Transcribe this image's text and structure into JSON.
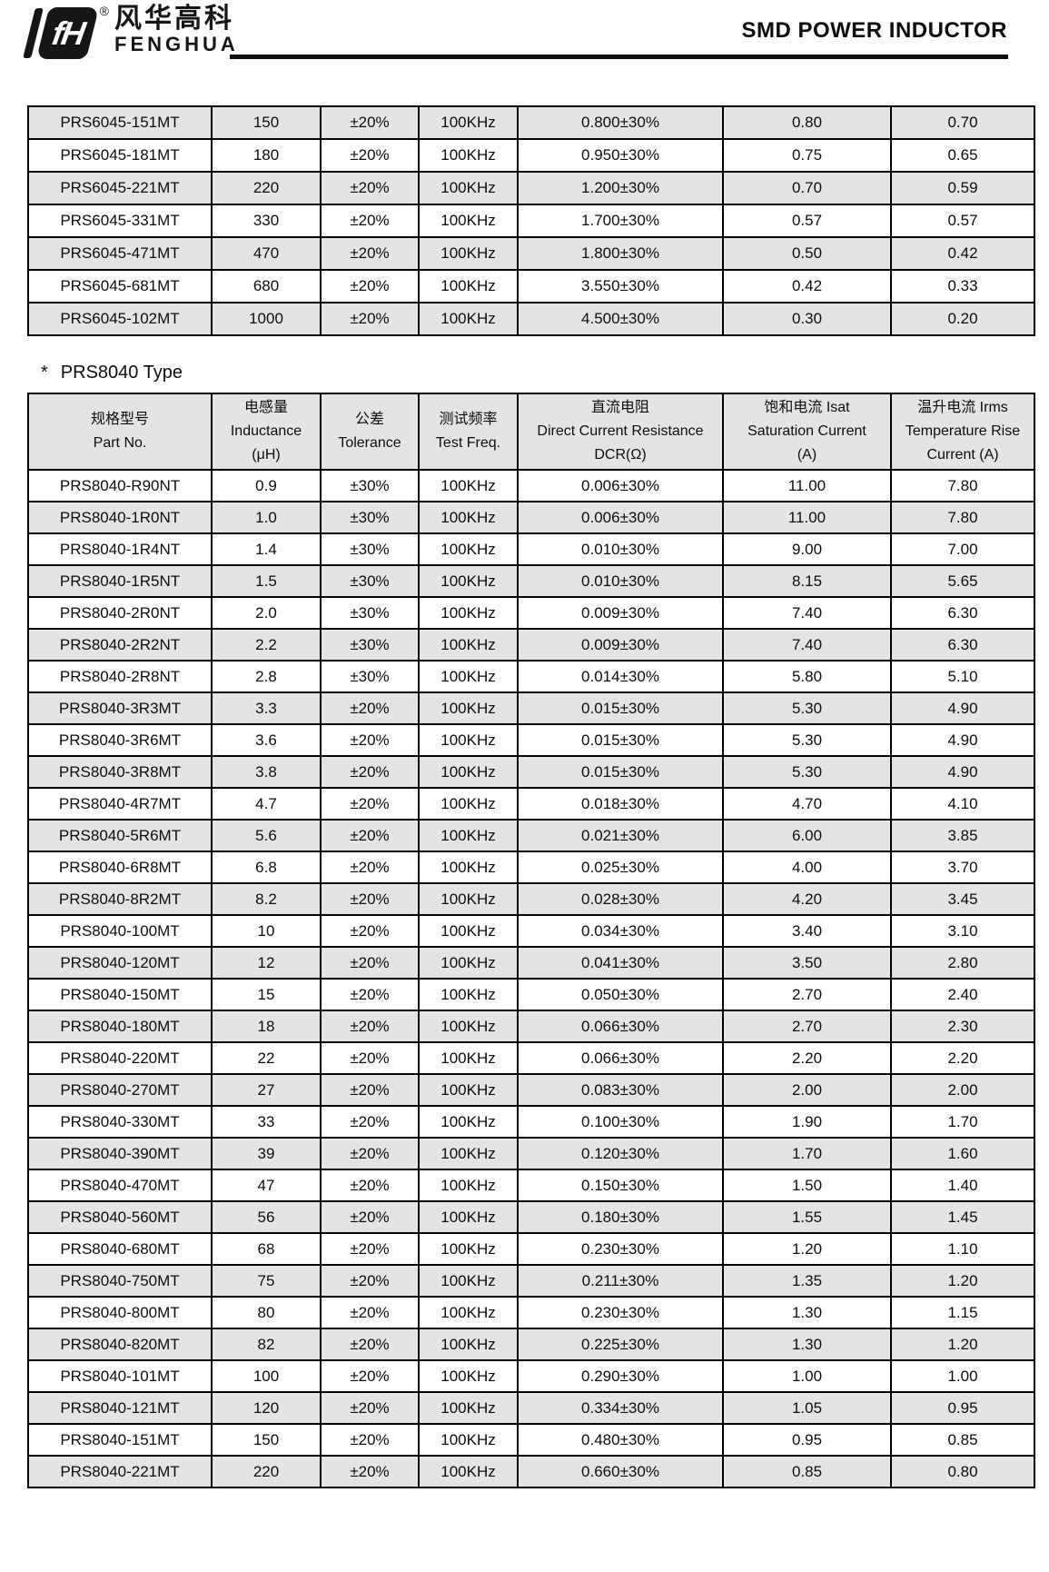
{
  "header": {
    "logo": {
      "mark": "fH",
      "reg": "®",
      "zh": "风华高科",
      "en": "FENGHUA"
    },
    "title": "SMD POWER INDUCTOR"
  },
  "section": {
    "marker": "*",
    "title": "PRS8040 Type"
  },
  "table1": {
    "rows": [
      [
        "PRS6045-151MT",
        "150",
        "±20%",
        "100KHz",
        "0.800±30%",
        "0.80",
        "0.70"
      ],
      [
        "PRS6045-181MT",
        "180",
        "±20%",
        "100KHz",
        "0.950±30%",
        "0.75",
        "0.65"
      ],
      [
        "PRS6045-221MT",
        "220",
        "±20%",
        "100KHz",
        "1.200±30%",
        "0.70",
        "0.59"
      ],
      [
        "PRS6045-331MT",
        "330",
        "±20%",
        "100KHz",
        "1.700±30%",
        "0.57",
        "0.57"
      ],
      [
        "PRS6045-471MT",
        "470",
        "±20%",
        "100KHz",
        "1.800±30%",
        "0.50",
        "0.42"
      ],
      [
        "PRS6045-681MT",
        "680",
        "±20%",
        "100KHz",
        "3.550±30%",
        "0.42",
        "0.33"
      ],
      [
        "PRS6045-102MT",
        "1000",
        "±20%",
        "100KHz",
        "4.500±30%",
        "0.30",
        "0.20"
      ]
    ]
  },
  "table2": {
    "headers": [
      {
        "lines": [
          "规格型号",
          "Part No."
        ]
      },
      {
        "lines": [
          "电感量",
          "Inductance",
          "(μH)"
        ]
      },
      {
        "lines": [
          "公差",
          "Tolerance"
        ]
      },
      {
        "lines": [
          "测试频率",
          "Test Freq."
        ]
      },
      {
        "lines": [
          "直流电阻",
          "Direct Current Resistance",
          "DCR(Ω)"
        ]
      },
      {
        "lines": [
          "饱和电流  Isat",
          "Saturation Current",
          "(A)"
        ]
      },
      {
        "lines": [
          "温升电流  Irms",
          "Temperature Rise",
          "Current (A)"
        ]
      }
    ],
    "rows": [
      [
        "PRS8040-R90NT",
        "0.9",
        "±30%",
        "100KHz",
        "0.006±30%",
        "11.00",
        "7.80"
      ],
      [
        "PRS8040-1R0NT",
        "1.0",
        "±30%",
        "100KHz",
        "0.006±30%",
        "11.00",
        "7.80"
      ],
      [
        "PRS8040-1R4NT",
        "1.4",
        "±30%",
        "100KHz",
        "0.010±30%",
        "9.00",
        "7.00"
      ],
      [
        "PRS8040-1R5NT",
        "1.5",
        "±30%",
        "100KHz",
        "0.010±30%",
        "8.15",
        "5.65"
      ],
      [
        "PRS8040-2R0NT",
        "2.0",
        "±30%",
        "100KHz",
        "0.009±30%",
        "7.40",
        "6.30"
      ],
      [
        "PRS8040-2R2NT",
        "2.2",
        "±30%",
        "100KHz",
        "0.009±30%",
        "7.40",
        "6.30"
      ],
      [
        "PRS8040-2R8NT",
        "2.8",
        "±30%",
        "100KHz",
        "0.014±30%",
        "5.80",
        "5.10"
      ],
      [
        "PRS8040-3R3MT",
        "3.3",
        "±20%",
        "100KHz",
        "0.015±30%",
        "5.30",
        "4.90"
      ],
      [
        "PRS8040-3R6MT",
        "3.6",
        "±20%",
        "100KHz",
        "0.015±30%",
        "5.30",
        "4.90"
      ],
      [
        "PRS8040-3R8MT",
        "3.8",
        "±20%",
        "100KHz",
        "0.015±30%",
        "5.30",
        "4.90"
      ],
      [
        "PRS8040-4R7MT",
        "4.7",
        "±20%",
        "100KHz",
        "0.018±30%",
        "4.70",
        "4.10"
      ],
      [
        "PRS8040-5R6MT",
        "5.6",
        "±20%",
        "100KHz",
        "0.021±30%",
        "6.00",
        "3.85"
      ],
      [
        "PRS8040-6R8MT",
        "6.8",
        "±20%",
        "100KHz",
        "0.025±30%",
        "4.00",
        "3.70"
      ],
      [
        "PRS8040-8R2MT",
        "8.2",
        "±20%",
        "100KHz",
        "0.028±30%",
        "4.20",
        "3.45"
      ],
      [
        "PRS8040-100MT",
        "10",
        "±20%",
        "100KHz",
        "0.034±30%",
        "3.40",
        "3.10"
      ],
      [
        "PRS8040-120MT",
        "12",
        "±20%",
        "100KHz",
        "0.041±30%",
        "3.50",
        "2.80"
      ],
      [
        "PRS8040-150MT",
        "15",
        "±20%",
        "100KHz",
        "0.050±30%",
        "2.70",
        "2.40"
      ],
      [
        "PRS8040-180MT",
        "18",
        "±20%",
        "100KHz",
        "0.066±30%",
        "2.70",
        "2.30"
      ],
      [
        "PRS8040-220MT",
        "22",
        "±20%",
        "100KHz",
        "0.066±30%",
        "2.20",
        "2.20"
      ],
      [
        "PRS8040-270MT",
        "27",
        "±20%",
        "100KHz",
        "0.083±30%",
        "2.00",
        "2.00"
      ],
      [
        "PRS8040-330MT",
        "33",
        "±20%",
        "100KHz",
        "0.100±30%",
        "1.90",
        "1.70"
      ],
      [
        "PRS8040-390MT",
        "39",
        "±20%",
        "100KHz",
        "0.120±30%",
        "1.70",
        "1.60"
      ],
      [
        "PRS8040-470MT",
        "47",
        "±20%",
        "100KHz",
        "0.150±30%",
        "1.50",
        "1.40"
      ],
      [
        "PRS8040-560MT",
        "56",
        "±20%",
        "100KHz",
        "0.180±30%",
        "1.55",
        "1.45"
      ],
      [
        "PRS8040-680MT",
        "68",
        "±20%",
        "100KHz",
        "0.230±30%",
        "1.20",
        "1.10"
      ],
      [
        "PRS8040-750MT",
        "75",
        "±20%",
        "100KHz",
        "0.211±30%",
        "1.35",
        "1.20"
      ],
      [
        "PRS8040-800MT",
        "80",
        "±20%",
        "100KHz",
        "0.230±30%",
        "1.30",
        "1.15"
      ],
      [
        "PRS8040-820MT",
        "82",
        "±20%",
        "100KHz",
        "0.225±30%",
        "1.30",
        "1.20"
      ],
      [
        "PRS8040-101MT",
        "100",
        "±20%",
        "100KHz",
        "0.290±30%",
        "1.00",
        "1.00"
      ],
      [
        "PRS8040-121MT",
        "120",
        "±20%",
        "100KHz",
        "0.334±30%",
        "1.05",
        "0.95"
      ],
      [
        "PRS8040-151MT",
        "150",
        "±20%",
        "100KHz",
        "0.480±30%",
        "0.95",
        "0.85"
      ],
      [
        "PRS8040-221MT",
        "220",
        "±20%",
        "100KHz",
        "0.660±30%",
        "0.85",
        "0.80"
      ]
    ],
    "shading": {
      "gray": "#e4e4e4"
    }
  }
}
